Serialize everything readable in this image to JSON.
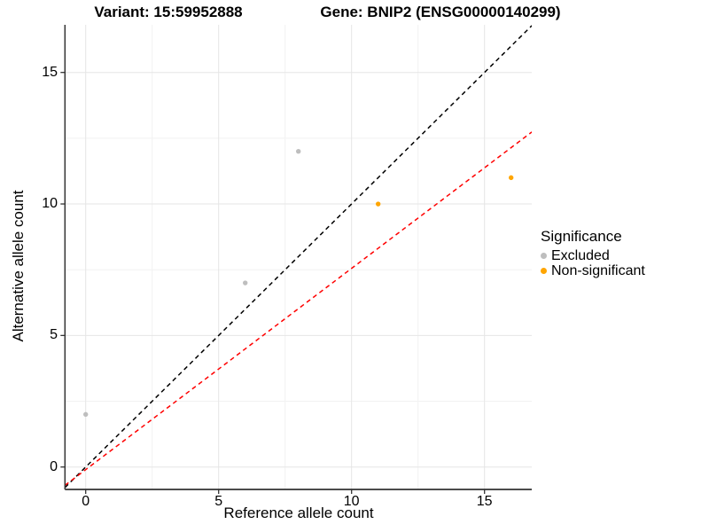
{
  "titles": {
    "variant": "Variant: 15:59952888",
    "gene": "Gene: BNIP2 (ENSG00000140299)"
  },
  "axes": {
    "x": {
      "label": "Reference allele count",
      "ticks": [
        0,
        5,
        10,
        15
      ],
      "minor": [
        2.5,
        7.5,
        12.5
      ],
      "range": [
        -0.78,
        16.78
      ]
    },
    "y": {
      "label": "Alternative allele count",
      "ticks": [
        0,
        5,
        10,
        15
      ],
      "minor": [
        2.5,
        7.5,
        12.5
      ],
      "range": [
        -0.85,
        16.8
      ]
    }
  },
  "legend": {
    "title": "Significance",
    "items": [
      {
        "label": "Excluded",
        "color": "#BEBEBE"
      },
      {
        "label": "Non-significant",
        "color": "#FFA500"
      }
    ]
  },
  "colors": {
    "excluded": "#BEBEBE",
    "non_significant": "#FFA500",
    "identity_line": "#000000",
    "fit_line": "#FF0000",
    "grid_major": "#E5E5E5",
    "grid_minor": "#F2F2F2",
    "axis_line": "#333333"
  },
  "chart_data": {
    "type": "scatter",
    "title": "Variant: 15:59952888   Gene: BNIP2 (ENSG00000140299)",
    "xlabel": "Reference allele count",
    "ylabel": "Alternative allele count",
    "xlim": [
      -0.78,
      16.78
    ],
    "ylim": [
      -0.85,
      16.8
    ],
    "x_ticks": [
      0,
      5,
      10,
      15
    ],
    "y_ticks": [
      0,
      5,
      10,
      15
    ],
    "grid": true,
    "legend_position": "right",
    "series": [
      {
        "name": "Excluded",
        "color": "#BEBEBE",
        "points": [
          [
            0,
            2
          ],
          [
            6,
            7
          ],
          [
            8,
            12
          ]
        ]
      },
      {
        "name": "Non-significant",
        "color": "#FFA500",
        "points": [
          [
            11,
            10
          ],
          [
            16,
            11
          ]
        ]
      }
    ],
    "lines": [
      {
        "name": "identity",
        "color": "#000000",
        "style": "dashed",
        "slope": 1,
        "intercept": 0
      },
      {
        "name": "fit",
        "color": "#FF0000",
        "style": "dashed",
        "slope": 0.765,
        "intercept": -0.1
      }
    ]
  }
}
